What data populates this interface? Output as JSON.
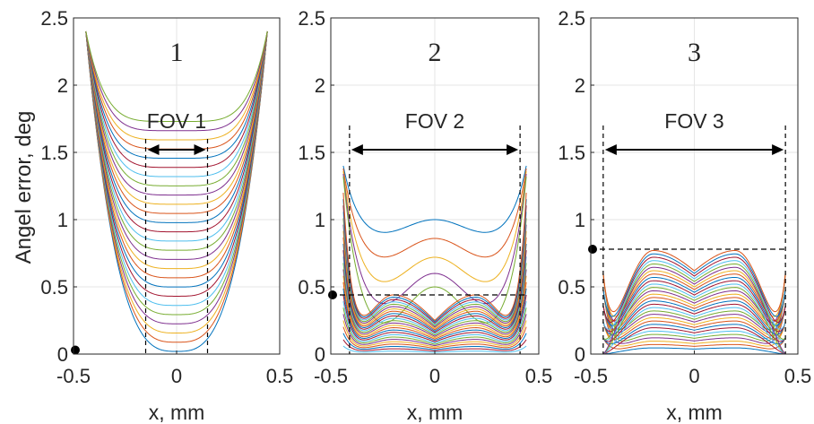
{
  "figure": {
    "ylabel": "Angel error, deg",
    "xlabel": "x, mm"
  },
  "chart_data": [
    {
      "type": "line",
      "panel_number": "1",
      "fov_label": "FOV 1",
      "xlabel": "x, mm",
      "ylabel": "Angel error, deg",
      "xlim": [
        -0.5,
        0.5
      ],
      "ylim": [
        0,
        2.5
      ],
      "xticks": [
        "-0.5",
        "0",
        "0.5"
      ],
      "yticks": [
        "0",
        "0.5",
        "1",
        "1.5",
        "2",
        "2.5"
      ],
      "grid": true,
      "curve_x_range": [
        -0.44,
        0.44
      ],
      "fov_x": [
        -0.15,
        0.15
      ],
      "marker_y": 0.03,
      "threshold_y": null,
      "series_count": 26,
      "curve_family": {
        "flat_level_min": 0.02,
        "flat_level_max": 1.73,
        "edge_level_max": 2.4,
        "shape": "u"
      }
    },
    {
      "type": "line",
      "panel_number": "2",
      "fov_label": "FOV 2",
      "xlabel": "x, mm",
      "ylabel": "",
      "xlim": [
        -0.5,
        0.5
      ],
      "ylim": [
        0,
        2.5
      ],
      "xticks": [
        "-0.5",
        "0",
        "0.5"
      ],
      "yticks": [
        "0",
        "0.5",
        "1",
        "1.5",
        "2",
        "2.5"
      ],
      "grid": true,
      "curve_x_range": [
        -0.44,
        0.44
      ],
      "fov_x": [
        -0.41,
        0.41
      ],
      "marker_y": 0.44,
      "threshold_y": 0.44,
      "series_count": 30,
      "curve_family": {
        "upper_center_levels": [
          1.0,
          0.86,
          0.72,
          0.6,
          0.5
        ],
        "hump_level": 0.44,
        "edge_level_max": 1.4,
        "shape": "double-hump"
      }
    },
    {
      "type": "line",
      "panel_number": "3",
      "fov_label": "FOV 3",
      "xlabel": "x, mm",
      "ylabel": "",
      "xlim": [
        -0.5,
        0.5
      ],
      "ylim": [
        0,
        2.5
      ],
      "xticks": [
        "-0.5",
        "0",
        "0.5"
      ],
      "yticks": [
        "0",
        "0.5",
        "1",
        "1.5",
        "2",
        "2.5"
      ],
      "grid": true,
      "curve_x_range": [
        -0.44,
        0.44
      ],
      "fov_x": [
        -0.44,
        0.44
      ],
      "marker_y": 0.78,
      "threshold_y": 0.78,
      "series_count": 30,
      "curve_family": {
        "hump_level": 0.77,
        "edge_level_max": 0.6,
        "shape": "double-hump"
      }
    }
  ],
  "palette": [
    "#0072BD",
    "#D95319",
    "#EDB120",
    "#7E2F8E",
    "#77AC30",
    "#4DBEEE",
    "#A2142F"
  ]
}
